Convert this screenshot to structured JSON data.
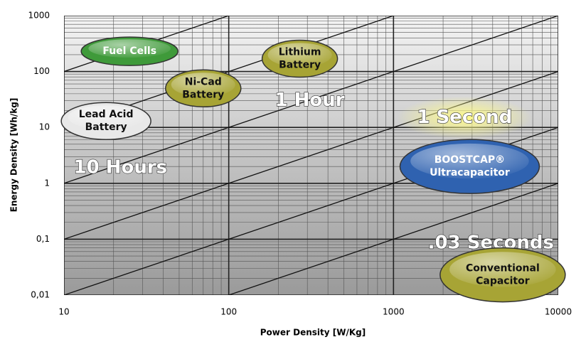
{
  "chart_data": {
    "type": "ragone",
    "xlabel": "Power Density [W/Kg]",
    "ylabel": "Energy Density [Wh/kg]",
    "xscale": "log",
    "yscale": "log",
    "grid": true,
    "xlim": [
      10,
      10000
    ],
    "ylim": [
      0.01,
      1000
    ],
    "xticks": [
      10,
      100,
      1000,
      10000
    ],
    "yticks": [
      {
        "value": 0.01,
        "label": "0,01"
      },
      {
        "value": 0.1,
        "label": "0,1"
      },
      1,
      10,
      100,
      1000
    ],
    "time_lines_hours": [
      10,
      1,
      0.1,
      0.01,
      0.001,
      0.0001
    ],
    "regions": [
      {
        "label": [
          "Fuel Cells"
        ],
        "x": 25,
        "y": 230,
        "color": "#3f9a3a"
      },
      {
        "label": [
          "Lithium",
          "Battery"
        ],
        "x": 270,
        "y": 170,
        "color": "#a7a435"
      },
      {
        "label": [
          "Ni-Cad",
          "Battery"
        ],
        "x": 70,
        "y": 50,
        "color": "#a7a435"
      },
      {
        "label": [
          "Lead Acid",
          "Battery"
        ],
        "x": 18,
        "y": 13,
        "color": "#e8e8e8"
      },
      {
        "label": [
          "BOOSTCAP®",
          "Ultracapacitor"
        ],
        "x": 2900,
        "y": 2,
        "color": "#2f62b0"
      },
      {
        "label": [
          "Conventional",
          "Capacitor"
        ],
        "x": 4600,
        "y": 0.023,
        "color": "#a7a435"
      }
    ],
    "annotations": [
      {
        "text": "10 Hours",
        "x": 22,
        "y": 1.9
      },
      {
        "text": "1 Hour",
        "x": 310,
        "y": 30
      },
      {
        "text": "1 Second",
        "x": 2700,
        "y": 15
      },
      {
        "text": ".03 Seconds",
        "x": 3900,
        "y": 0.085
      }
    ]
  }
}
